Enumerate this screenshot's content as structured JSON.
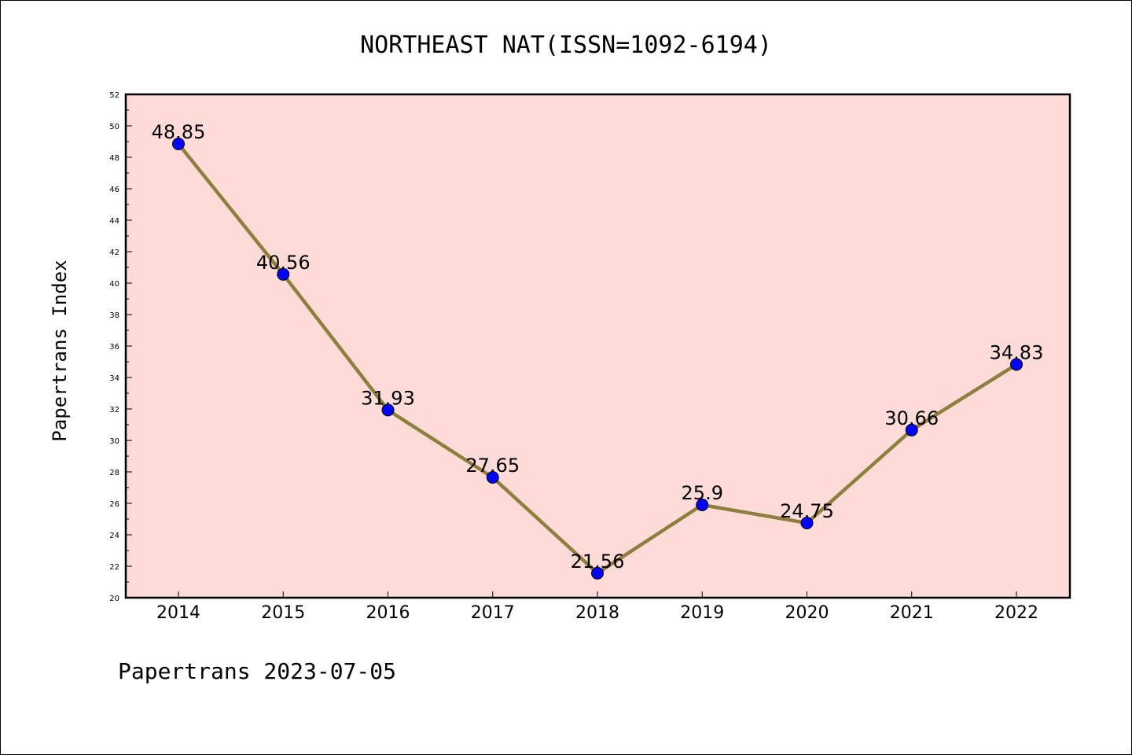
{
  "chart_data": {
    "type": "line",
    "title": "NORTHEAST NAT(ISSN=1092-6194)",
    "ylabel": "Papertrans Index",
    "xlabel": "",
    "categories": [
      "2014",
      "2015",
      "2016",
      "2017",
      "2018",
      "2019",
      "2020",
      "2021",
      "2022"
    ],
    "values": [
      48.85,
      40.56,
      31.93,
      27.65,
      21.56,
      25.9,
      24.75,
      30.66,
      34.83
    ],
    "data_labels": [
      "48.85",
      "40.56",
      "31.93",
      "27.65",
      "21.56",
      "25.9",
      "24.75",
      "30.66",
      "34.83"
    ],
    "ylim": [
      20,
      52
    ],
    "yticks": [
      "20",
      "22",
      "24",
      "26",
      "28",
      "30",
      "32",
      "34",
      "36",
      "38",
      "40",
      "42",
      "44",
      "46",
      "48",
      "50",
      "52"
    ],
    "grid": false,
    "legend": "none",
    "colors": {
      "plot_background": "#fddbd8",
      "line": "#8f7f3e",
      "marker": "#0000ff",
      "axes": "#000000"
    }
  },
  "footer": "Papertrans 2023-07-05"
}
